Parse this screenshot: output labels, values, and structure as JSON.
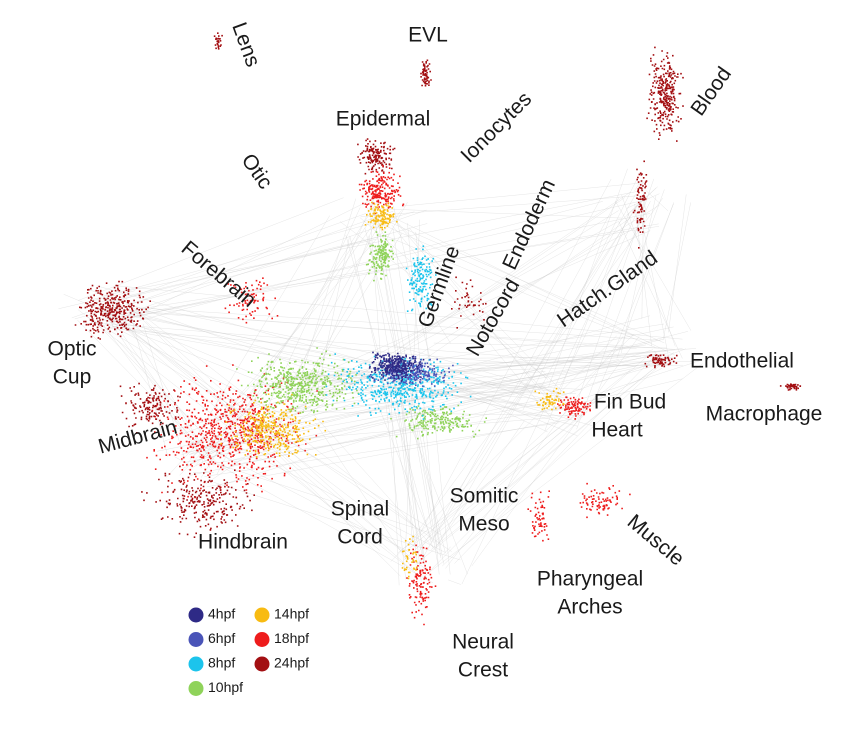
{
  "figure": {
    "labels": [
      [
        "Lens"
      ],
      [
        "EVL"
      ],
      [
        "Epidermal"
      ],
      [
        "Ionocytes"
      ],
      [
        "Blood"
      ],
      [
        "Otic"
      ],
      [
        "Endoderm"
      ],
      [
        "Forebrain"
      ],
      [
        "Germline"
      ],
      [
        "Hatch.Gland"
      ],
      [
        "Notocord"
      ],
      [
        "Optic",
        "Cup"
      ],
      [
        "Endothelial"
      ],
      [
        "Fin Bud",
        "Heart"
      ],
      [
        "Macrophage"
      ],
      [
        "Midbrain"
      ],
      [
        "Somitic",
        "Meso"
      ],
      [
        "Spinal",
        "Cord"
      ],
      [
        "Hindbrain"
      ],
      [
        "Muscle"
      ],
      [
        "Pharyngeal",
        "Arches"
      ],
      [
        "Neural",
        "Crest"
      ]
    ],
    "legend": [
      {
        "name": "4hpf",
        "color": "#2e2a86"
      },
      {
        "name": "6hpf",
        "color": "#4a54b8"
      },
      {
        "name": "8hpf",
        "color": "#1cc4ec"
      },
      {
        "name": "10hpf",
        "color": "#8fd35a"
      },
      {
        "name": "14hpf",
        "color": "#f8bb12"
      },
      {
        "name": "18hpf",
        "color": "#ee1c1c"
      },
      {
        "name": "24hpf",
        "color": "#a30f12"
      }
    ]
  }
}
